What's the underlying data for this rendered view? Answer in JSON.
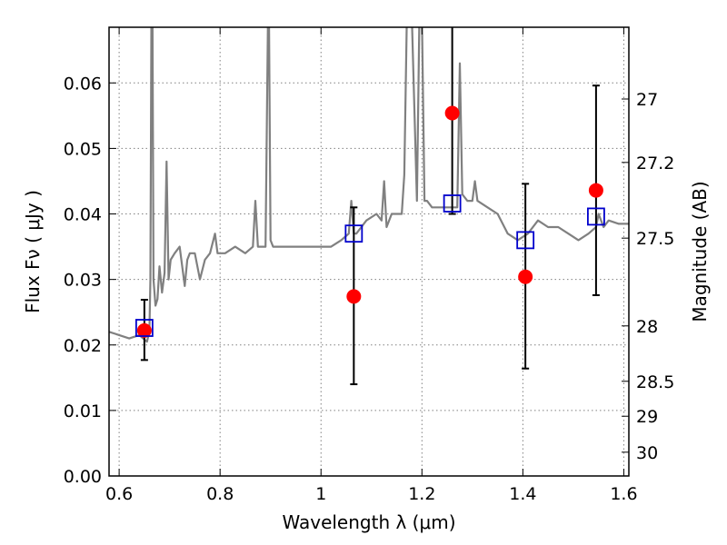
{
  "chart_data": {
    "type": "scatter",
    "title": "",
    "xlabel": "Wavelength  λ (μm)",
    "ylabel": "Flux  Fν  ( μJy )",
    "y2label": "Magnitude (AB)",
    "xlim": [
      0.58,
      1.61
    ],
    "ylim": [
      0.0,
      0.0685
    ],
    "grid": true,
    "x_ticks": [
      {
        "value": 0.6,
        "label": "0.6"
      },
      {
        "value": 0.8,
        "label": "0.8"
      },
      {
        "value": 1.0,
        "label": "1"
      },
      {
        "value": 1.2,
        "label": "1.2"
      },
      {
        "value": 1.4,
        "label": "1.4"
      },
      {
        "value": 1.6,
        "label": "1.6"
      }
    ],
    "y_ticks": [
      {
        "value": 0.0,
        "label": "0.00"
      },
      {
        "value": 0.01,
        "label": "0.01"
      },
      {
        "value": 0.02,
        "label": "0.02"
      },
      {
        "value": 0.03,
        "label": "0.03"
      },
      {
        "value": 0.04,
        "label": "0.04"
      },
      {
        "value": 0.05,
        "label": "0.05"
      },
      {
        "value": 0.06,
        "label": "0.06"
      }
    ],
    "y2_ticks": [
      {
        "value": 27.0,
        "label": "27"
      },
      {
        "value": 27.2,
        "label": "27.2"
      },
      {
        "value": 27.5,
        "label": "27.5"
      },
      {
        "value": 28.0,
        "label": "28"
      },
      {
        "value": 28.5,
        "label": "28.5"
      },
      {
        "value": 29.0,
        "label": "29"
      },
      {
        "value": 30.0,
        "label": "30"
      }
    ],
    "colors": {
      "model": "#808080",
      "observed": "#ff0000",
      "synthetic": "#0000cc",
      "errorbar": "#000000",
      "grid": "#808080"
    },
    "series": [
      {
        "kind": "line",
        "x": [
          0.58,
          0.6,
          0.62,
          0.64,
          0.655,
          0.66,
          0.662,
          0.664,
          0.666,
          0.668,
          0.672,
          0.676,
          0.68,
          0.685,
          0.69,
          0.694,
          0.698,
          0.702,
          0.71,
          0.72,
          0.73,
          0.735,
          0.74,
          0.75,
          0.76,
          0.77,
          0.78,
          0.79,
          0.795,
          0.8,
          0.81,
          0.83,
          0.85,
          0.865,
          0.87,
          0.875,
          0.88,
          0.89,
          0.895,
          0.897,
          0.9,
          0.905,
          0.92,
          0.95,
          0.98,
          1.0,
          1.02,
          1.04,
          1.055,
          1.06,
          1.065,
          1.07,
          1.09,
          1.11,
          1.12,
          1.125,
          1.13,
          1.14,
          1.16,
          1.165,
          1.17,
          1.18,
          1.19,
          1.195,
          1.2,
          1.205,
          1.21,
          1.22,
          1.24,
          1.26,
          1.27,
          1.275,
          1.28,
          1.29,
          1.3,
          1.305,
          1.31,
          1.33,
          1.35,
          1.37,
          1.39,
          1.41,
          1.43,
          1.45,
          1.47,
          1.49,
          1.51,
          1.53,
          1.545,
          1.55,
          1.56,
          1.57,
          1.59,
          1.61
        ],
        "y": [
          0.022,
          0.0215,
          0.021,
          0.0215,
          0.0205,
          0.022,
          0.03,
          0.07,
          0.07,
          0.03,
          0.026,
          0.027,
          0.032,
          0.028,
          0.031,
          0.048,
          0.03,
          0.033,
          0.034,
          0.035,
          0.029,
          0.033,
          0.034,
          0.034,
          0.03,
          0.033,
          0.034,
          0.037,
          0.034,
          0.034,
          0.034,
          0.035,
          0.034,
          0.035,
          0.042,
          0.035,
          0.035,
          0.035,
          0.07,
          0.07,
          0.036,
          0.035,
          0.035,
          0.035,
          0.035,
          0.035,
          0.035,
          0.036,
          0.037,
          0.042,
          0.037,
          0.037,
          0.039,
          0.04,
          0.039,
          0.045,
          0.038,
          0.04,
          0.04,
          0.046,
          0.07,
          0.07,
          0.042,
          0.07,
          0.07,
          0.042,
          0.042,
          0.041,
          0.041,
          0.041,
          0.041,
          0.063,
          0.043,
          0.042,
          0.042,
          0.045,
          0.042,
          0.041,
          0.04,
          0.037,
          0.036,
          0.037,
          0.039,
          0.038,
          0.038,
          0.037,
          0.036,
          0.037,
          0.038,
          0.04,
          0.038,
          0.039,
          0.0385,
          0.0385
        ]
      },
      {
        "kind": "errorbar",
        "x": [
          0.65,
          1.065,
          1.26,
          1.405,
          1.545
        ],
        "y_low": [
          0.0177,
          0.014,
          0.04,
          0.0164,
          0.0276
        ],
        "y_high": [
          0.0269,
          0.041,
          0.0695,
          0.0446,
          0.0596
        ]
      },
      {
        "kind": "points",
        "marker": "circle",
        "x": [
          0.65,
          1.065,
          1.26,
          1.405,
          1.545
        ],
        "y": [
          0.0222,
          0.0274,
          0.0554,
          0.0304,
          0.0436
        ]
      },
      {
        "kind": "points",
        "marker": "square",
        "x": [
          0.65,
          1.065,
          1.26,
          1.405,
          1.545
        ],
        "y": [
          0.0226,
          0.037,
          0.0416,
          0.036,
          0.0396
        ]
      }
    ]
  }
}
